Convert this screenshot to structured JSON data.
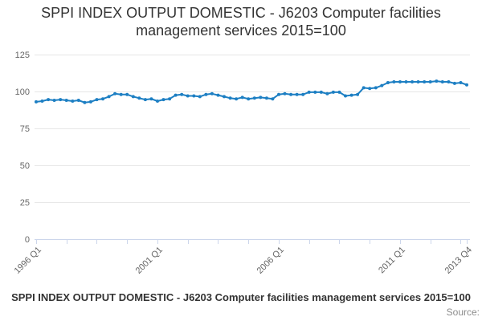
{
  "page": {
    "title_lines": [
      "SPPI INDEX OUTPUT DOMESTIC - J6203 Computer facilities",
      "management services 2015=100"
    ],
    "footer_legend": "SPPI INDEX OUTPUT DOMESTIC - J6203 Computer facilities management services 2015=100",
    "source_label": "Source:"
  },
  "chart_data": {
    "type": "line",
    "title": "SPPI INDEX OUTPUT DOMESTIC - J6203 Computer facilities management services 2015=100",
    "series_name": "SPPI INDEX OUTPUT DOMESTIC - J6203 Computer facilities management services 2015=100",
    "xlabel": "",
    "ylabel": "",
    "ylim": [
      0,
      125
    ],
    "yticks": [
      0,
      25,
      50,
      75,
      100,
      125
    ],
    "grid": true,
    "legend_position": "bottom",
    "x_tick_labels": [
      {
        "index": 0,
        "label": "1996 Q1"
      },
      {
        "index": 20,
        "label": "2001 Q1"
      },
      {
        "index": 40,
        "label": "2006 Q1"
      },
      {
        "index": 60,
        "label": "2011 Q1"
      },
      {
        "index": 71,
        "label": "2013 Q4"
      }
    ],
    "colors": {
      "line": "#1d7fc3",
      "grid": "#e6e6e6",
      "axis": "#ccd6eb",
      "tick_labels": "#666666",
      "title": "#333333"
    },
    "categories": [
      "1996 Q1",
      "1996 Q2",
      "1996 Q3",
      "1996 Q4",
      "1997 Q1",
      "1997 Q2",
      "1997 Q3",
      "1997 Q4",
      "1998 Q1",
      "1998 Q2",
      "1998 Q3",
      "1998 Q4",
      "1999 Q1",
      "1999 Q2",
      "1999 Q3",
      "1999 Q4",
      "2000 Q1",
      "2000 Q2",
      "2000 Q3",
      "2000 Q4",
      "2001 Q1",
      "2001 Q2",
      "2001 Q3",
      "2001 Q4",
      "2002 Q1",
      "2002 Q2",
      "2002 Q3",
      "2002 Q4",
      "2003 Q1",
      "2003 Q2",
      "2003 Q3",
      "2003 Q4",
      "2004 Q1",
      "2004 Q2",
      "2004 Q3",
      "2004 Q4",
      "2005 Q1",
      "2005 Q2",
      "2005 Q3",
      "2005 Q4",
      "2006 Q1",
      "2006 Q2",
      "2006 Q3",
      "2006 Q4",
      "2007 Q1",
      "2007 Q2",
      "2007 Q3",
      "2007 Q4",
      "2008 Q1",
      "2008 Q2",
      "2008 Q3",
      "2008 Q4",
      "2009 Q1",
      "2009 Q2",
      "2009 Q3",
      "2009 Q4",
      "2010 Q1",
      "2010 Q2",
      "2010 Q3",
      "2010 Q4",
      "2011 Q1",
      "2011 Q2",
      "2011 Q3",
      "2011 Q4",
      "2012 Q1",
      "2012 Q2",
      "2012 Q3",
      "2012 Q4",
      "2013 Q1",
      "2013 Q2",
      "2013 Q3",
      "2013 Q4"
    ],
    "values": [
      93,
      93.5,
      94.5,
      94,
      94.5,
      94,
      93.5,
      94,
      92.5,
      93,
      94.5,
      95,
      96.5,
      98.5,
      98,
      98,
      96.5,
      95.5,
      94.5,
      95,
      93.5,
      94.5,
      95,
      97.5,
      98,
      97,
      97,
      96.5,
      98,
      98.5,
      97.5,
      96.5,
      95.5,
      95,
      96,
      95,
      95.5,
      96,
      95.5,
      95,
      98,
      98.5,
      98,
      98,
      98,
      99.5,
      99.5,
      99.5,
      98.5,
      99.5,
      99.5,
      97,
      97.5,
      98,
      102.5,
      102,
      102.5,
      104,
      106,
      106.5,
      106.5,
      106.5,
      106.5,
      106.5,
      106.5,
      106.5,
      107,
      106.5,
      106.5,
      105.5,
      106,
      104.5
    ]
  }
}
